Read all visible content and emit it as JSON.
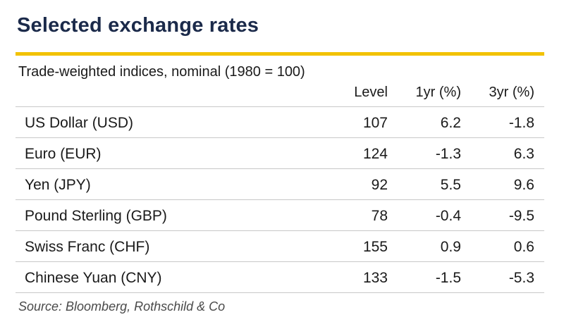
{
  "title": "Selected exchange rates",
  "subtitle": "Trade-weighted indices, nominal (1980 = 100)",
  "columns": {
    "level": "Level",
    "one_year": "1yr (%)",
    "three_year": "3yr (%)"
  },
  "rows": [
    {
      "name": "US Dollar (USD)",
      "level": "107",
      "one_year": "6.2",
      "three_year": "-1.8"
    },
    {
      "name": "Euro (EUR)",
      "level": "124",
      "one_year": "-1.3",
      "three_year": "6.3"
    },
    {
      "name": "Yen (JPY)",
      "level": "92",
      "one_year": "5.5",
      "three_year": "9.6"
    },
    {
      "name": "Pound Sterling (GBP)",
      "level": "78",
      "one_year": "-0.4",
      "three_year": "-9.5"
    },
    {
      "name": "Swiss Franc (CHF)",
      "level": "155",
      "one_year": "0.9",
      "three_year": "0.6"
    },
    {
      "name": "Chinese Yuan (CNY)",
      "level": "133",
      "one_year": "-1.5",
      "three_year": "-5.3"
    }
  ],
  "source": "Source: Bloomberg, Rothschild & Co",
  "colors": {
    "title": "#1b2a4a",
    "accent_rule": "#f2c200",
    "row_rule": "#c8c8c8"
  }
}
